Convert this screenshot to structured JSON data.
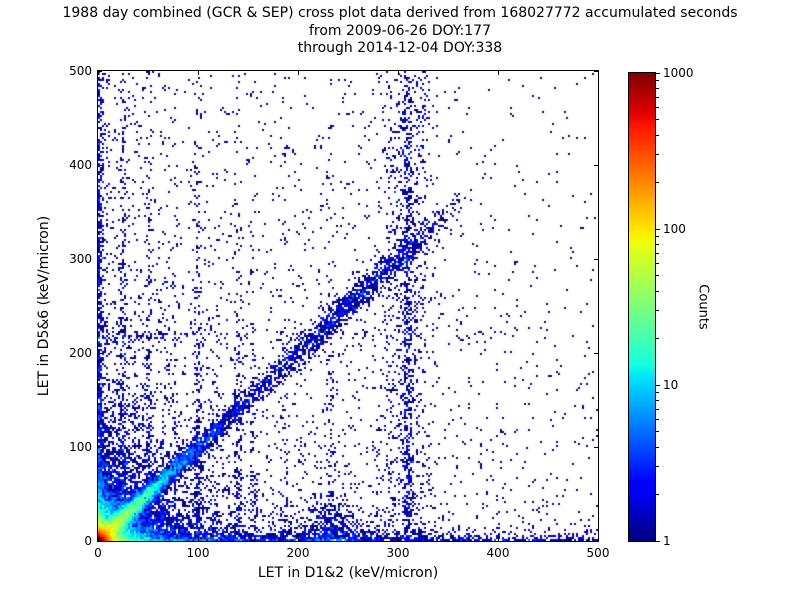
{
  "chart_data": {
    "type": "heatmap",
    "title_lines": [
      "1988 day combined (GCR & SEP) cross plot data derived from 168027772 accumulated seconds",
      "from 2009-06-26 DOY:177",
      "through 2014-12-04 DOY:338"
    ],
    "xlabel": "LET in D1&2 (keV/micron)",
    "ylabel": "LET in D5&6 (keV/micron)",
    "xlim": [
      0,
      500
    ],
    "ylim": [
      0,
      500
    ],
    "xticks": [
      0,
      100,
      200,
      300,
      400,
      500
    ],
    "yticks": [
      0,
      100,
      200,
      300,
      400,
      500
    ],
    "grid": false,
    "colorbar": {
      "label": "Counts",
      "scale": "log",
      "range": [
        1,
        1000
      ],
      "ticks": [
        1,
        10,
        100,
        1000
      ],
      "colormap": "jet"
    },
    "features": [
      "intense hot spot (red/orange, ~1000 counts) at the origin below ~20 keV/micron in both detectors",
      "bright yellow-green diagonal ridge from the origin out to ~(40,40)",
      "blue/cyan 1:1 diagonal band from ~(80,80) to ~(320,320), densest near (260,260)",
      "dense horizontal band along y~0 extending across all x",
      "dense vertical band along x~0 extending up all y",
      "narrow vertical streaks near x = 25, 38, 51, 64, 77, 100, 117, 140, 155, 187, 232, 310",
      "sparse dark-blue background scatter thinning away from the origin"
    ],
    "density_model_est": {
      "comment": "estimated expected counts lambda(x,y) per 2x2 keV/micron bin, read off the pixels; rendered with Poisson speckle and log10 jet colour mapping from 1 to 1000",
      "core_exps": [
        [
          2000,
          3.5
        ],
        [
          600,
          7
        ],
        [
          60,
          18
        ],
        [
          7,
          40
        ]
      ],
      "core_diag": {
        "a": 80,
        "w": 6,
        "len": 32
      },
      "bottom_band": [
        [
          5,
          3.5,
          250,
          0.12
        ],
        [
          1.2,
          12,
          180,
          0
        ]
      ],
      "bottom_blob": {
        "a": 2.2,
        "x": 235,
        "sx": 18,
        "ys": 18
      },
      "left_band": [
        [
          3.5,
          3.5,
          430
        ],
        [
          0.8,
          10,
          120
        ]
      ],
      "diagonal": {
        "sigma": 9,
        "lobes": [
          [
            1.7,
            260,
            55
          ],
          [
            0.5,
            140,
            60
          ]
        ],
        "cutoff": 330,
        "cutoff_scale": 25
      },
      "streaks": [
        [
          25,
          1.2,
          260,
          2.2
        ],
        [
          38,
          0.5,
          150,
          2.2
        ],
        [
          51,
          0.8,
          220,
          2.2
        ],
        [
          64,
          0.4,
          120,
          2.2
        ],
        [
          77,
          0.35,
          150,
          2.2
        ],
        [
          100,
          0.8,
          260,
          2.2
        ],
        [
          117,
          0.3,
          120,
          2.2
        ],
        [
          140,
          0.7,
          200,
          2.2
        ],
        [
          155,
          0.45,
          160,
          2.2
        ],
        [
          187,
          0.3,
          140,
          2.2
        ],
        [
          232,
          0.5,
          200,
          2.2
        ],
        [
          310,
          0.9,
          500,
          2.5
        ],
        [
          308,
          0.22,
          100000,
          15
        ]
      ],
      "hband": [
        [
          0.3,
          218,
          4,
          200
        ]
      ],
      "background": [
        [
          0.08,
          220,
          350
        ],
        [
          0.02,
          800,
          800
        ],
        [
          0.006,
          100000,
          100000
        ]
      ]
    }
  }
}
